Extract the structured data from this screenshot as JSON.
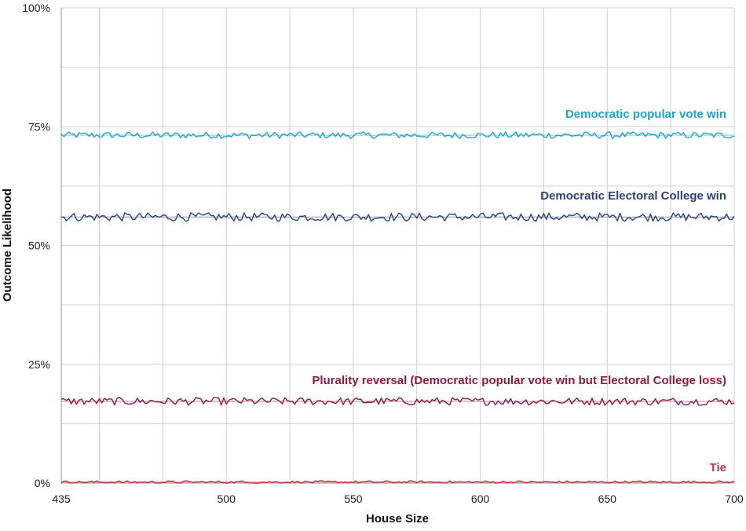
{
  "chart_data": {
    "type": "line",
    "xlabel": "House Size",
    "ylabel": "Outcome Likelihood",
    "xlim": [
      435,
      700
    ],
    "ylim": [
      0,
      100
    ],
    "x_ticks": [
      435,
      500,
      550,
      600,
      650,
      700
    ],
    "y_ticks": [
      0,
      25,
      50,
      75,
      100
    ],
    "y_tick_labels": [
      "0%",
      "25%",
      "50%",
      "75%",
      "100%"
    ],
    "grid": true,
    "legend": "inline labels above each series",
    "series": [
      {
        "name": "Democratic popular vote win",
        "color": "#1ba3d6",
        "mean": 73.2,
        "amplitude": 0.7,
        "label_anchor_x": 700
      },
      {
        "name": "Democratic Electoral College win",
        "color": "#2f3f78",
        "mean": 56.0,
        "amplitude": 0.9,
        "label_anchor_x": 700
      },
      {
        "name": "Plurality reversal (Democratic popular vote win but Electoral College loss)",
        "color": "#8c1c3a",
        "mean": 17.2,
        "amplitude": 0.8,
        "label_anchor_x": 700
      },
      {
        "name": "Tie",
        "color": "#c4314b",
        "mean": 0.2,
        "amplitude": 0.3,
        "label_anchor_x": 700
      }
    ]
  }
}
